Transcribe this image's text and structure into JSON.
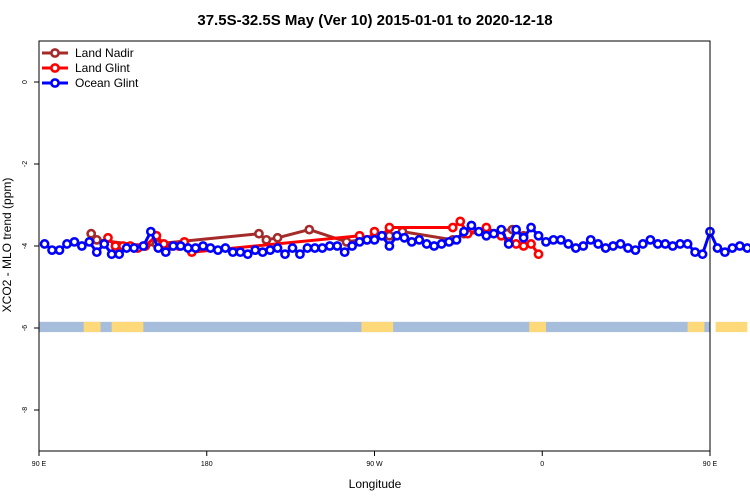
{
  "chart_data": {
    "type": "line",
    "title": "37.5S-32.5S May (Ver 10)   2015-01-01 to 2020-12-18",
    "xlabel": "Longitude",
    "ylabel": "XCO2 - MLO trend (ppm)",
    "xlim": [
      90,
      450
    ],
    "ylim": [
      -9,
      1
    ],
    "x_ticks": [
      {
        "value": 90,
        "label": "90 E"
      },
      {
        "value": 180,
        "label": "180"
      },
      {
        "value": 270,
        "label": "90 W"
      },
      {
        "value": 360,
        "label": "0"
      },
      {
        "value": 450,
        "label": "90 E"
      },
      {
        "value": 540,
        "label": "180"
      }
    ],
    "y_ticks": [
      {
        "value": 0,
        "label": "0"
      },
      {
        "value": -2,
        "label": "-2"
      },
      {
        "value": -4,
        "label": "-4"
      },
      {
        "value": -6,
        "label": "-6"
      },
      {
        "value": -8,
        "label": "-8"
      }
    ],
    "legend_position": "top-left",
    "map_strip": {
      "y_top": -5.85,
      "y_bottom": -6.1,
      "ocean_color": "#a6bddb",
      "land_color": "#fdd97a",
      "land_x_ranges": [
        [
          114,
          123
        ],
        [
          129,
          146
        ],
        [
          263,
          280
        ],
        [
          353,
          362
        ],
        [
          438,
          447
        ],
        [
          453,
          470
        ]
      ]
    },
    "series": [
      {
        "name": "Land Nadir",
        "color": "#a52a2a",
        "points": [
          [
            118,
            -3.7
          ],
          [
            121,
            -3.85
          ],
          [
            147,
            -4.0
          ],
          [
            153,
            -3.95
          ],
          [
            208,
            -3.7
          ],
          [
            212,
            -3.85
          ],
          [
            218,
            -3.8
          ],
          [
            235,
            -3.6
          ],
          [
            255,
            -3.9
          ],
          [
            278,
            -3.75
          ],
          [
            285,
            -3.65
          ],
          [
            312,
            -3.85
          ],
          [
            318,
            -3.7
          ],
          [
            344,
            -3.6
          ],
          [
            350,
            -3.75
          ]
        ]
      },
      {
        "name": "Land Glint",
        "color": "#ff0000",
        "points": [
          [
            127,
            -3.8
          ],
          [
            131,
            -4.0
          ],
          [
            135,
            -4.0
          ],
          [
            139,
            -4.0
          ],
          [
            143,
            -4.05
          ],
          [
            147,
            -4.0
          ],
          [
            153,
            -3.75
          ],
          [
            157,
            -3.95
          ],
          [
            161,
            -4.0
          ],
          [
            165,
            -4.0
          ],
          [
            168,
            -3.9
          ],
          [
            172,
            -4.15
          ],
          [
            262,
            -3.75
          ],
          [
            266,
            -3.85
          ],
          [
            270,
            -3.65
          ],
          [
            274,
            -3.75
          ],
          [
            278,
            -3.55
          ],
          [
            312,
            -3.55
          ],
          [
            316,
            -3.4
          ],
          [
            320,
            -3.7
          ],
          [
            330,
            -3.55
          ],
          [
            338,
            -3.75
          ],
          [
            342,
            -3.9
          ],
          [
            346,
            -3.95
          ],
          [
            350,
            -4.0
          ],
          [
            354,
            -3.95
          ],
          [
            358,
            -4.2
          ]
        ]
      },
      {
        "name": "Ocean Glint",
        "color": "#0000ff",
        "points": [
          [
            93,
            -3.95
          ],
          [
            97,
            -4.1
          ],
          [
            101,
            -4.1
          ],
          [
            105,
            -3.95
          ],
          [
            109,
            -3.9
          ],
          [
            113,
            -4.0
          ],
          [
            117,
            -3.9
          ],
          [
            121,
            -4.15
          ],
          [
            125,
            -3.95
          ],
          [
            129,
            -4.2
          ],
          [
            133,
            -4.2
          ],
          [
            137,
            -4.05
          ],
          [
            141,
            -4.05
          ],
          [
            146,
            -4.0
          ],
          [
            150,
            -3.65
          ],
          [
            154,
            -4.05
          ],
          [
            158,
            -4.15
          ],
          [
            162,
            -4.0
          ],
          [
            166,
            -4.0
          ],
          [
            170,
            -4.05
          ],
          [
            174,
            -4.05
          ],
          [
            178,
            -4.0
          ],
          [
            182,
            -4.05
          ],
          [
            186,
            -4.1
          ],
          [
            190,
            -4.05
          ],
          [
            194,
            -4.15
          ],
          [
            198,
            -4.15
          ],
          [
            202,
            -4.2
          ],
          [
            206,
            -4.1
          ],
          [
            210,
            -4.15
          ],
          [
            214,
            -4.1
          ],
          [
            218,
            -4.05
          ],
          [
            222,
            -4.2
          ],
          [
            226,
            -4.05
          ],
          [
            230,
            -4.2
          ],
          [
            234,
            -4.05
          ],
          [
            238,
            -4.05
          ],
          [
            242,
            -4.05
          ],
          [
            246,
            -4.0
          ],
          [
            250,
            -4.0
          ],
          [
            254,
            -4.15
          ],
          [
            258,
            -4.0
          ],
          [
            262,
            -3.9
          ],
          [
            266,
            -3.85
          ],
          [
            270,
            -3.85
          ],
          [
            274,
            -3.75
          ],
          [
            278,
            -4.0
          ],
          [
            282,
            -3.75
          ],
          [
            286,
            -3.8
          ],
          [
            290,
            -3.9
          ],
          [
            294,
            -3.85
          ],
          [
            298,
            -3.95
          ],
          [
            302,
            -4.0
          ],
          [
            306,
            -3.95
          ],
          [
            310,
            -3.9
          ],
          [
            314,
            -3.85
          ],
          [
            318,
            -3.65
          ],
          [
            322,
            -3.5
          ],
          [
            326,
            -3.65
          ],
          [
            330,
            -3.75
          ],
          [
            334,
            -3.7
          ],
          [
            338,
            -3.6
          ],
          [
            342,
            -3.95
          ],
          [
            346,
            -3.6
          ],
          [
            350,
            -3.8
          ],
          [
            354,
            -3.55
          ],
          [
            358,
            -3.75
          ],
          [
            362,
            -3.9
          ],
          [
            366,
            -3.85
          ],
          [
            370,
            -3.85
          ],
          [
            374,
            -3.95
          ],
          [
            378,
            -4.05
          ],
          [
            382,
            -4.0
          ],
          [
            386,
            -3.85
          ],
          [
            390,
            -3.95
          ],
          [
            394,
            -4.05
          ],
          [
            398,
            -4.0
          ],
          [
            402,
            -3.95
          ],
          [
            406,
            -4.05
          ],
          [
            410,
            -4.1
          ],
          [
            414,
            -3.95
          ],
          [
            418,
            -3.85
          ],
          [
            422,
            -3.95
          ],
          [
            426,
            -3.95
          ],
          [
            430,
            -4.0
          ],
          [
            434,
            -3.95
          ],
          [
            438,
            -3.95
          ],
          [
            442,
            -4.15
          ],
          [
            446,
            -4.2
          ],
          [
            450,
            -3.65
          ],
          [
            454,
            -4.05
          ],
          [
            458,
            -4.15
          ],
          [
            462,
            -4.05
          ],
          [
            466,
            -4.0
          ],
          [
            470,
            -4.05
          ]
        ]
      }
    ]
  }
}
